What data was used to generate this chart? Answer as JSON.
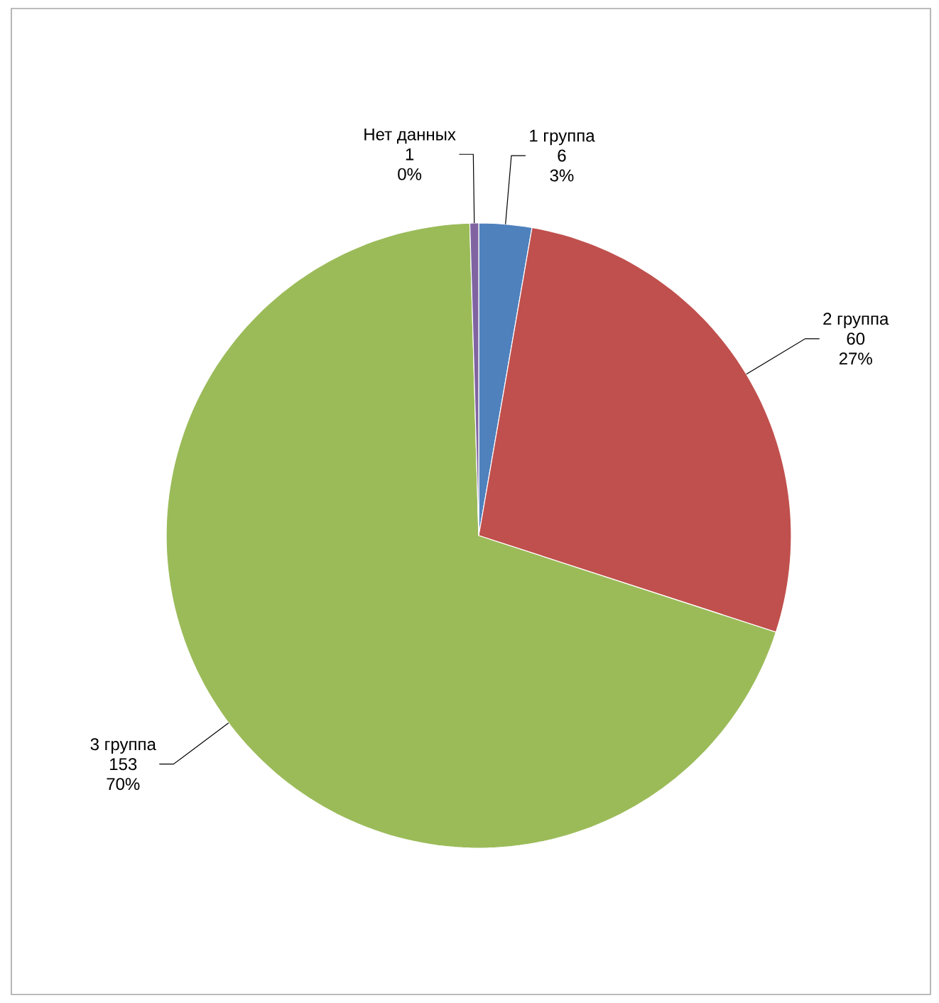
{
  "chart_data": {
    "type": "pie",
    "categories": [
      "1 группа",
      "2 группа",
      "3 группа",
      "Нет данных"
    ],
    "values": [
      6,
      60,
      153,
      1
    ],
    "colors": [
      "#4f81bd",
      "#c0504d",
      "#9bbb59",
      "#8064a2"
    ],
    "data_labels": true,
    "annotations": [
      {
        "text": "3%",
        "x": "1 группа"
      },
      {
        "text": "27%",
        "x": "2 группа"
      },
      {
        "text": "70%",
        "x": "3 группа"
      },
      {
        "text": "0%",
        "x": "Нет данных"
      }
    ]
  }
}
